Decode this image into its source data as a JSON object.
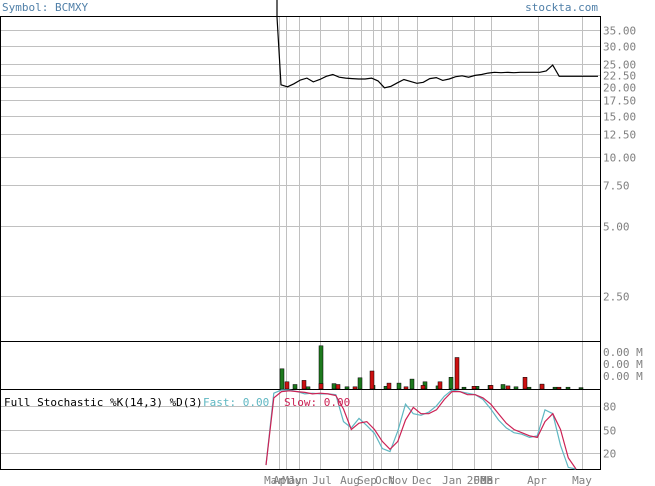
{
  "header": {
    "symbol_label": "Symbol: BCMXY",
    "site": "stockta.com"
  },
  "colors": {
    "grid": "#c0c0c0",
    "frame": "#000000",
    "axis_text": "#808080",
    "label_blue": "#4f7fa8",
    "up_bar": "#1e7a1e",
    "down_bar": "#cc1111",
    "fast_line": "#5fb7c2",
    "slow_line": "#cc2255"
  },
  "chart_data": [
    {
      "type": "line",
      "panel": "price",
      "scale": "log",
      "ylim": [
        1.6,
        40
      ],
      "price_ticks": [
        "35.00",
        "30.00",
        "25.00",
        "22.50",
        "20.00",
        "17.50",
        "15.00",
        "12.50",
        "10.00",
        "7.50",
        "5.00",
        "2.50"
      ],
      "x_ticks": [
        "Mar",
        "Apr",
        "May",
        "Jun",
        "Jul",
        "Aug",
        "Sep",
        "Oct",
        "Nov",
        "Dec",
        "Jan",
        "2008",
        "Feb",
        "Mar",
        "Apr",
        "May"
      ],
      "series": [
        {
          "values": [
            20.4,
            20.0,
            20.6,
            21.4,
            21.8,
            21.0,
            21.5,
            22.2,
            22.6,
            22.0,
            21.8,
            21.7,
            21.6,
            21.6,
            21.8,
            21.2,
            19.8,
            20.1,
            20.8,
            21.5,
            21.1,
            20.7,
            20.9,
            21.7,
            21.9,
            21.3,
            21.6,
            22.1,
            22.3,
            22.0,
            22.4,
            22.6,
            22.9,
            23.1,
            23.0,
            23.1,
            23.0,
            23.1,
            23.1,
            23.1,
            23.1,
            23.4,
            24.8,
            22.2,
            22.2,
            22.2,
            22.2,
            22.2,
            22.2,
            22.2
          ]
        }
      ]
    },
    {
      "type": "bar",
      "panel": "volume",
      "tick_labels": [
        "0.00 M",
        "0.00 M",
        "0.00 M"
      ],
      "series": [
        {
          "name": "up",
          "values": [
            0.45,
            0.1,
            0.05,
            0.96,
            0.12,
            0.05,
            0.25,
            0.08,
            0.06,
            0.13,
            0.22,
            0.16,
            0.07,
            0.26,
            0.04,
            0.06,
            0.08,
            0.1,
            0.05,
            0.04,
            0.1,
            0.04,
            0.04,
            0.03
          ]
        },
        {
          "name": "down",
          "values": [
            0.16,
            0.19,
            0.12,
            0.1,
            0.05,
            0.4,
            0.13,
            0.05,
            0.08,
            0.16,
            0.7,
            0.06,
            0.08,
            0.07,
            0.26,
            0.11,
            0.04
          ]
        }
      ]
    },
    {
      "type": "line",
      "panel": "stochastic",
      "title": "Full Stochastic %K(14,3) %D(3)",
      "fast_label": "Fast: 0.00",
      "slow_label": "Slow: 0.00",
      "ylim": [
        0,
        100
      ],
      "y_ticks": [
        "80",
        "50",
        "20"
      ],
      "series": [
        {
          "name": "Fast",
          "values": [
            5,
            96,
            100,
            100,
            98,
            95,
            96,
            95,
            95,
            94,
            60,
            52,
            64,
            55,
            45,
            26,
            22,
            48,
            82,
            70,
            68,
            72,
            80,
            92,
            100,
            98,
            96,
            94,
            88,
            76,
            62,
            52,
            46,
            44,
            40,
            42,
            75,
            70,
            30,
            2,
            0
          ]
        },
        {
          "name": "Slow",
          "values": [
            5,
            90,
            98,
            99,
            98,
            97,
            95,
            96,
            95,
            93,
            76,
            50,
            58,
            60,
            50,
            35,
            25,
            35,
            62,
            78,
            70,
            70,
            75,
            88,
            98,
            98,
            94,
            94,
            90,
            82,
            70,
            58,
            50,
            46,
            42,
            40,
            60,
            70,
            50,
            14,
            0
          ]
        }
      ]
    }
  ]
}
